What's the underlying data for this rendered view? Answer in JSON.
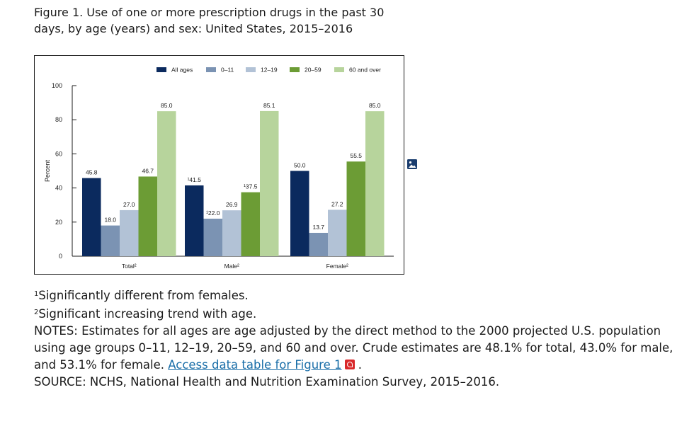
{
  "figure": {
    "title": "Figure 1. Use of one or more prescription drugs in the past 30 days, by age (years) and sex: United States, 2015–2016"
  },
  "chart_data": {
    "type": "bar",
    "categories": [
      "Total",
      "Male",
      "Female"
    ],
    "category_labels": [
      "Total²",
      "Male²",
      "Female²"
    ],
    "series": [
      {
        "name": "All ages",
        "values": [
          45.8,
          41.5,
          50.0
        ],
        "labels": [
          "45.8",
          "¹41.5",
          "50.0"
        ],
        "color": "#0b2a5e"
      },
      {
        "name": "0–11",
        "values": [
          18.0,
          22.0,
          13.7
        ],
        "labels": [
          "18.0",
          "¹22.0",
          "13.7"
        ],
        "color": "#7b93b3"
      },
      {
        "name": "12–19",
        "values": [
          27.0,
          26.9,
          27.2
        ],
        "labels": [
          "27.0",
          "26.9",
          "27.2"
        ],
        "color": "#b2c2d6"
      },
      {
        "name": "20–59",
        "values": [
          46.7,
          37.5,
          55.5
        ],
        "labels": [
          "46.7",
          "¹37.5",
          "55.5"
        ],
        "color": "#6c9c35"
      },
      {
        "name": "60 and over",
        "values": [
          85.0,
          85.1,
          85.0
        ],
        "labels": [
          "85.0",
          "85.1",
          "85.0"
        ],
        "color": "#b7d49c"
      }
    ],
    "ylabel": "Percent",
    "ylim": [
      0,
      100
    ],
    "yticks": [
      0,
      20,
      40,
      60,
      80,
      100
    ],
    "legend": "top",
    "grid": false
  },
  "notes": {
    "footnote1_mark": "1",
    "footnote1": "Significantly different from females.",
    "footnote2_mark": "2",
    "footnote2": "Significant increasing trend with age.",
    "notes_text": "NOTES: Estimates for all ages are age adjusted by the direct method to the 2000 projected U.S. population using age groups 0–11, 12–19, 20–59, and 60 and over. Crude estimates are 48.1% for total, 43.0% for male, and 53.1% for female. ",
    "link_text": "Access data table for Figure 1",
    "link_end": ".",
    "source": "SOURCE: NCHS, National Health and Nutrition Examination Survey, 2015–2016."
  },
  "icons": {
    "image": "image-icon",
    "pdf": "pdf-icon"
  }
}
